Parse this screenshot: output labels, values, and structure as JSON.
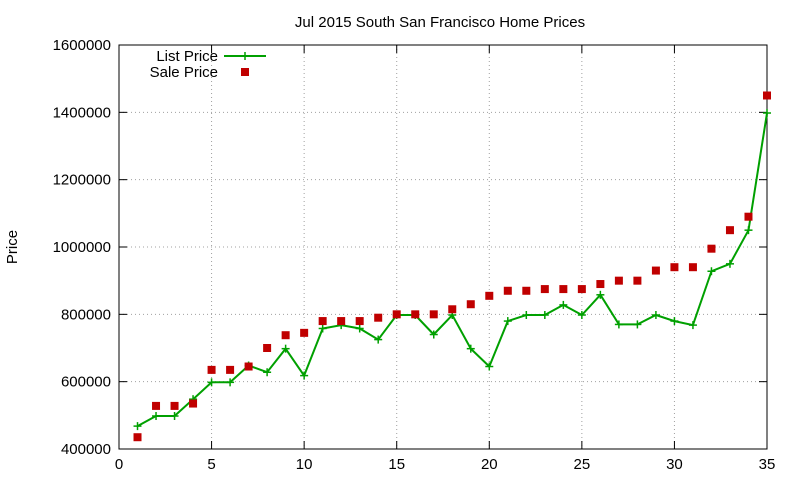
{
  "chart_data": {
    "type": "line",
    "title": "Jul 2015 South San Francisco Home Prices",
    "xlabel": "",
    "ylabel": "Price",
    "xlim": [
      0,
      35
    ],
    "ylim": [
      400000,
      1600000
    ],
    "x_ticks": [
      0,
      5,
      10,
      15,
      20,
      25,
      30,
      35
    ],
    "y_ticks": [
      400000,
      600000,
      800000,
      1000000,
      1200000,
      1400000,
      1600000
    ],
    "grid": true,
    "legend_position": "top-left",
    "x": [
      1,
      2,
      3,
      4,
      5,
      6,
      7,
      8,
      9,
      10,
      11,
      12,
      13,
      14,
      15,
      16,
      17,
      18,
      19,
      20,
      21,
      22,
      23,
      24,
      25,
      26,
      27,
      28,
      29,
      30,
      31,
      32,
      33,
      34,
      35
    ],
    "series": [
      {
        "name": "List Price",
        "style": "line-points",
        "color": "#00a000",
        "values": [
          468000,
          498000,
          498000,
          548000,
          598000,
          598000,
          648000,
          628000,
          698000,
          618000,
          758000,
          768000,
          758000,
          725000,
          798000,
          798000,
          740000,
          798000,
          698000,
          645000,
          780000,
          798000,
          798000,
          828000,
          798000,
          858000,
          770000,
          770000,
          798000,
          780000,
          768000,
          928000,
          950000,
          1050000,
          1398000
        ]
      },
      {
        "name": "Sale Price",
        "style": "points",
        "color": "#c00000",
        "values": [
          435000,
          528000,
          528000,
          535000,
          635000,
          635000,
          645000,
          700000,
          738000,
          745000,
          780000,
          780000,
          780000,
          790000,
          800000,
          800000,
          800000,
          815000,
          830000,
          855000,
          870000,
          870000,
          875000,
          875000,
          875000,
          890000,
          900000,
          900000,
          930000,
          940000,
          940000,
          995000,
          1050000,
          1090000,
          1450000
        ]
      }
    ]
  }
}
